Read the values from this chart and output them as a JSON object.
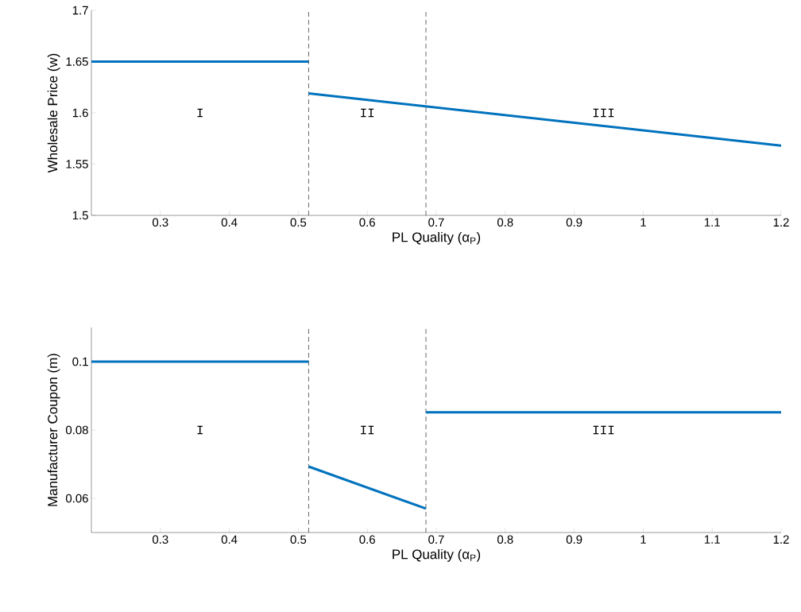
{
  "chart_data": [
    {
      "type": "line",
      "xlabel": "PL Quality (α$_{P}$)",
      "ylabel": "Wholesale Price (w)",
      "xlim": [
        0.2,
        1.2
      ],
      "ylim": [
        1.5,
        1.7
      ],
      "xticks": [
        0.3,
        0.4,
        0.5,
        0.6,
        0.7,
        0.8,
        0.9,
        1,
        1.1,
        1.2
      ],
      "yticks": [
        1.5,
        1.55,
        1.6,
        1.65,
        1.7
      ],
      "grid": false,
      "series": [
        {
          "color": "#0072bd",
          "x": [
            0.2,
            0.515
          ],
          "values": [
            1.65,
            1.65
          ]
        },
        {
          "color": "#0072bd",
          "x": [
            0.515,
            1.2
          ],
          "values": [
            1.619,
            1.568
          ]
        }
      ],
      "ref_lines": [
        {
          "axis": "x",
          "value": 0.515,
          "color": "#000000",
          "line_style": "dashed"
        },
        {
          "axis": "x",
          "value": 0.685,
          "color": "#000000",
          "line_style": "dashed"
        }
      ],
      "annotations": [
        "I",
        "II",
        "III"
      ]
    },
    {
      "type": "line",
      "xlabel": "PL Quality (α$_{P}$)",
      "ylabel": "Manufacturer Coupon (m)",
      "xlim": [
        0.2,
        1.2
      ],
      "ylim": [
        0.05,
        0.11
      ],
      "xticks": [
        0.3,
        0.4,
        0.5,
        0.6,
        0.7,
        0.8,
        0.9,
        1,
        1.1,
        1.2
      ],
      "yticks": [
        0.06,
        0.08,
        0.1
      ],
      "grid": false,
      "series": [
        {
          "color": "#0072bd",
          "x": [
            0.2,
            0.515
          ],
          "values": [
            0.1,
            0.1
          ]
        },
        {
          "color": "#0072bd",
          "x": [
            0.515,
            0.685
          ],
          "values": [
            0.0693,
            0.057
          ]
        },
        {
          "color": "#0072bd",
          "x": [
            0.685,
            1.2
          ],
          "values": [
            0.0852,
            0.0852
          ]
        }
      ],
      "ref_lines": [
        {
          "axis": "x",
          "value": 0.515,
          "color": "#000000",
          "line_style": "dashed"
        },
        {
          "axis": "x",
          "value": 0.685,
          "color": "#000000",
          "line_style": "dashed"
        }
      ],
      "annotations": [
        "I",
        "II",
        "III"
      ]
    }
  ]
}
